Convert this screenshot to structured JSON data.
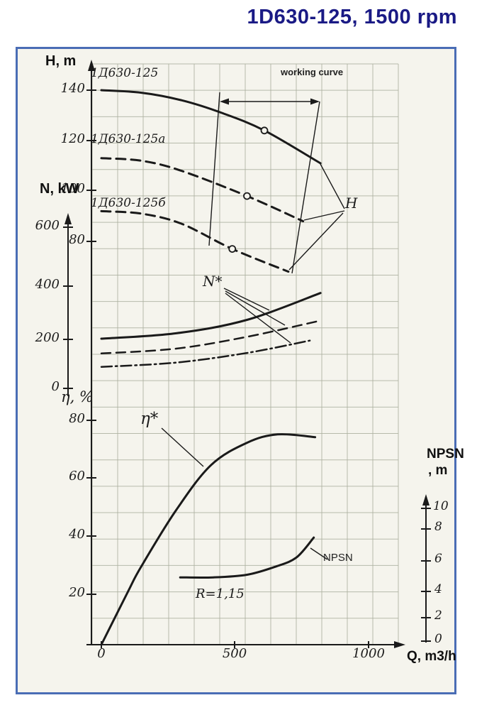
{
  "chart_data": {
    "type": "line",
    "title": "1D630-125, 1500 rpm",
    "xlabel": "Q, m3/h",
    "x_ticks": [
      "0",
      "500",
      "1000"
    ],
    "x_range": [
      0,
      1100
    ],
    "grid": true,
    "axes": {
      "H": {
        "label": "H, m",
        "ticks": [
          "140",
          "120",
          "100",
          "80"
        ],
        "range": [
          60,
          150
        ]
      },
      "N": {
        "label": "N, kW",
        "ticks": [
          "600",
          "400",
          "200",
          "0"
        ],
        "range": [
          0,
          700
        ]
      },
      "eta": {
        "label": "η, %",
        "ticks": [
          "80",
          "60",
          "40",
          "20"
        ],
        "range": [
          0,
          90
        ]
      },
      "npsn": {
        "label_line1": "NPSN",
        "label_line2": ", m",
        "ticks": [
          "10",
          "8",
          "6",
          "4",
          "2",
          "0"
        ],
        "range": [
          0,
          11
        ]
      }
    },
    "series": [
      {
        "name": "1Д630-125",
        "quantity": "H",
        "axis": "H",
        "style": "solid",
        "width": 3,
        "points": [
          [
            0,
            140
          ],
          [
            150,
            139
          ],
          [
            300,
            136
          ],
          [
            450,
            131
          ],
          [
            610,
            124
          ],
          [
            820,
            111
          ]
        ],
        "marker": [
          610,
          124
        ]
      },
      {
        "name": "1Д630-125а",
        "quantity": "H",
        "axis": "H",
        "style": "dashed",
        "width": 3,
        "points": [
          [
            0,
            113
          ],
          [
            150,
            112
          ],
          [
            300,
            108
          ],
          [
            545,
            98
          ],
          [
            755,
            88
          ]
        ],
        "marker": [
          545,
          98
        ]
      },
      {
        "name": "1Д630-125б",
        "quantity": "H",
        "axis": "H",
        "style": "dashed",
        "width": 3,
        "points": [
          [
            0,
            92
          ],
          [
            150,
            91
          ],
          [
            300,
            87
          ],
          [
            490,
            77
          ],
          [
            700,
            68
          ]
        ],
        "marker": [
          490,
          77
        ]
      },
      {
        "name": "N* 1Д630-125",
        "quantity": "N*",
        "axis": "N",
        "style": "solid",
        "width": 3,
        "points": [
          [
            0,
            185
          ],
          [
            280,
            205
          ],
          [
            545,
            255
          ],
          [
            820,
            355
          ]
        ]
      },
      {
        "name": "N* 1Д630-125а",
        "quantity": "N*",
        "axis": "N",
        "style": "dashed",
        "width": 2.5,
        "points": [
          [
            0,
            130
          ],
          [
            280,
            148
          ],
          [
            545,
            192
          ],
          [
            810,
            250
          ]
        ]
      },
      {
        "name": "N* 1Д630-125б",
        "quantity": "N*",
        "axis": "N",
        "style": "dashdot",
        "width": 2.5,
        "points": [
          [
            0,
            80
          ],
          [
            280,
            96
          ],
          [
            545,
            132
          ],
          [
            780,
            178
          ]
        ]
      },
      {
        "name": "η*",
        "quantity": "η*",
        "axis": "eta",
        "style": "solid",
        "width": 3,
        "points": [
          [
            0,
            0
          ],
          [
            100,
            19
          ],
          [
            150,
            28
          ],
          [
            280,
            48
          ],
          [
            410,
            64
          ],
          [
            545,
            72
          ],
          [
            660,
            75
          ],
          [
            800,
            74
          ]
        ]
      },
      {
        "name": "NPSN",
        "quantity": "NPSN",
        "axis": "npsn",
        "style": "solid",
        "width": 3,
        "points": [
          [
            295,
            4.8
          ],
          [
            420,
            4.8
          ],
          [
            545,
            5.0
          ],
          [
            650,
            5.6
          ],
          [
            730,
            6.3
          ],
          [
            795,
            7.8
          ]
        ]
      }
    ],
    "annotations": {
      "working_curve": "working curve",
      "h_pointer": "H",
      "n_star": "N*",
      "eta_star": "η*",
      "npsn_curve": "NPSN",
      "r_value": "R=1,15"
    }
  },
  "colors": {
    "title": "#1a1a85",
    "border": "#4a6db5",
    "ink": "#1a1a1a",
    "grid": "#adb0a0",
    "paper": "#f5f4ed"
  }
}
